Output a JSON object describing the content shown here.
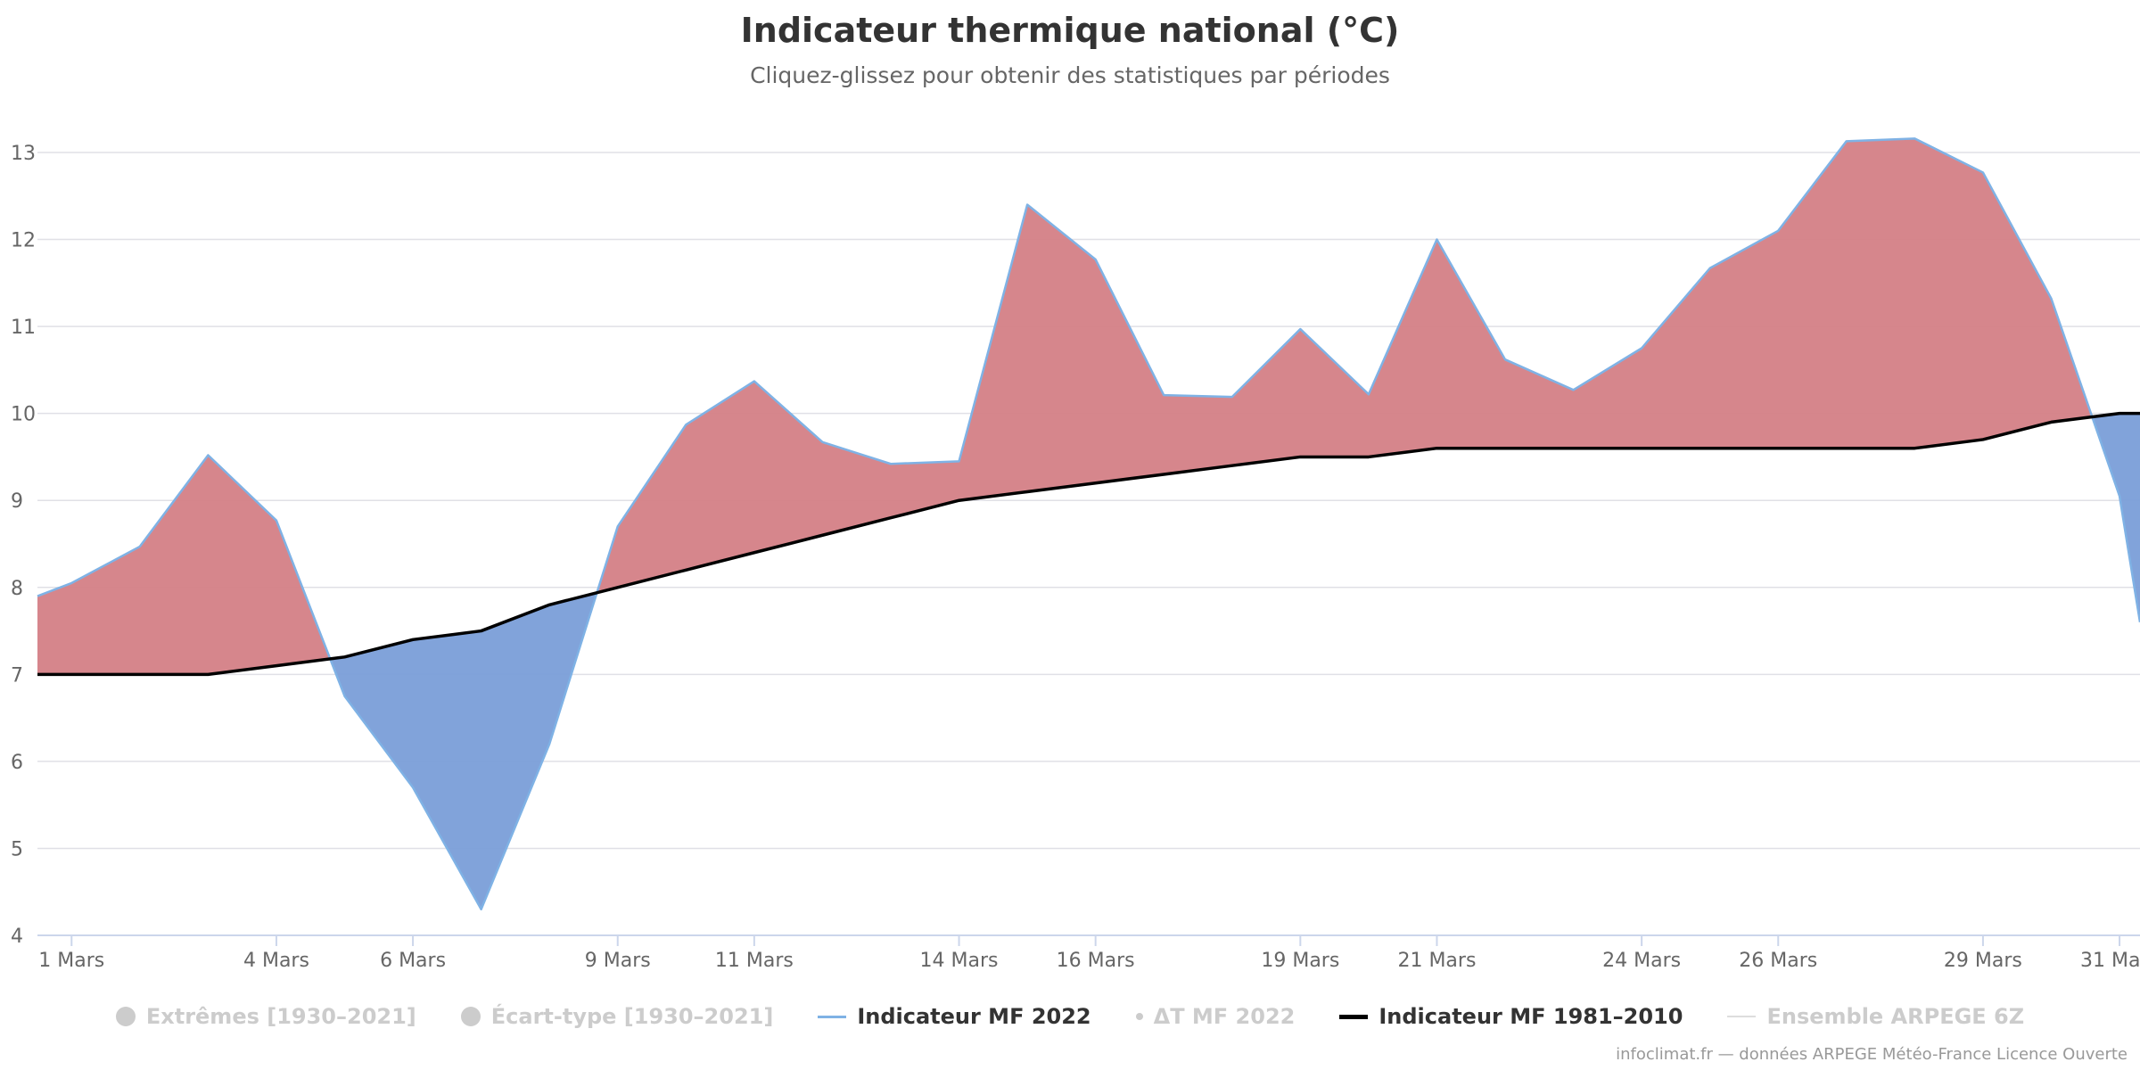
{
  "title": "Indicateur thermique national (°C)",
  "subtitle": "Cliquez-glissez pour obtenir des statistiques par périodes",
  "credits": "infoclimat.fr — données ARPEGE Météo-France Licence Ouverte",
  "colors": {
    "above": "#d47f86",
    "below": "#7a9ed8",
    "series_line": "#7fb2e5",
    "normal_line": "#000000",
    "grid": "#e0e0e6"
  },
  "legend": [
    {
      "label": "Extrêmes [1930–2021]",
      "symbol": "circle",
      "state": "hidden"
    },
    {
      "label": "Écart-type [1930–2021]",
      "symbol": "circle",
      "state": "hidden"
    },
    {
      "label": "Indicateur MF 2022",
      "symbol": "line",
      "state": "active",
      "color": "#7fb2e5"
    },
    {
      "label": "ΔT MF 2022",
      "symbol": "dot",
      "state": "hidden"
    },
    {
      "label": "Indicateur MF 1981–2010",
      "symbol": "line-thick",
      "state": "active",
      "color": "#000000"
    },
    {
      "label": "Ensemble ARPEGE 6Z",
      "symbol": "line-thin",
      "state": "hidden",
      "color": "#dddddd"
    }
  ],
  "chart_data": {
    "type": "area",
    "ylim": [
      4,
      13
    ],
    "xlim": [
      0.5,
      31.3
    ],
    "yticks": [
      4,
      5,
      6,
      7,
      8,
      9,
      10,
      11,
      12,
      13
    ],
    "xticks": [
      {
        "x": 1,
        "label": "1 Mars"
      },
      {
        "x": 4,
        "label": "4 Mars"
      },
      {
        "x": 6,
        "label": "6 Mars"
      },
      {
        "x": 9,
        "label": "9 Mars"
      },
      {
        "x": 11,
        "label": "11 Mars"
      },
      {
        "x": 14,
        "label": "14 Mars"
      },
      {
        "x": 16,
        "label": "16 Mars"
      },
      {
        "x": 19,
        "label": "19 Mars"
      },
      {
        "x": 21,
        "label": "21 Mars"
      },
      {
        "x": 24,
        "label": "24 Mars"
      },
      {
        "x": 26,
        "label": "26 Mars"
      },
      {
        "x": 29,
        "label": "29 Mars"
      },
      {
        "x": 31,
        "label": "31 Mars"
      }
    ],
    "grid": true,
    "legend_position": "bottom",
    "series": [
      {
        "name": "Indicateur MF 2022",
        "x": [
          0.5,
          1,
          2,
          3,
          4,
          5,
          6,
          7,
          8,
          9,
          10,
          11,
          12,
          13,
          14,
          15,
          16,
          17,
          18,
          19,
          20,
          21,
          22,
          23,
          24,
          25,
          26,
          27,
          28,
          29,
          30,
          31,
          31.3
        ],
        "values": [
          7.9,
          8.05,
          8.47,
          9.52,
          8.77,
          6.75,
          5.7,
          4.3,
          6.2,
          8.7,
          9.87,
          10.37,
          9.67,
          9.42,
          9.45,
          12.4,
          11.77,
          10.21,
          10.19,
          10.97,
          10.22,
          12.0,
          10.62,
          10.27,
          10.75,
          11.67,
          12.1,
          13.13,
          13.16,
          12.77,
          11.32,
          9.05,
          7.6
        ]
      },
      {
        "name": "Indicateur MF 1981–2010",
        "x": [
          0.5,
          1,
          2,
          3,
          4,
          5,
          6,
          7,
          8,
          9,
          10,
          11,
          12,
          13,
          14,
          15,
          16,
          17,
          18,
          19,
          20,
          21,
          22,
          23,
          24,
          25,
          26,
          27,
          28,
          29,
          30,
          31,
          31.3
        ],
        "values": [
          7.0,
          7.0,
          7.0,
          7.0,
          7.1,
          7.2,
          7.4,
          7.5,
          7.8,
          8.0,
          8.2,
          8.4,
          8.6,
          8.8,
          9.0,
          9.1,
          9.2,
          9.3,
          9.4,
          9.5,
          9.5,
          9.6,
          9.6,
          9.6,
          9.6,
          9.6,
          9.6,
          9.6,
          9.6,
          9.7,
          9.9,
          10.0,
          10.0
        ]
      }
    ]
  }
}
